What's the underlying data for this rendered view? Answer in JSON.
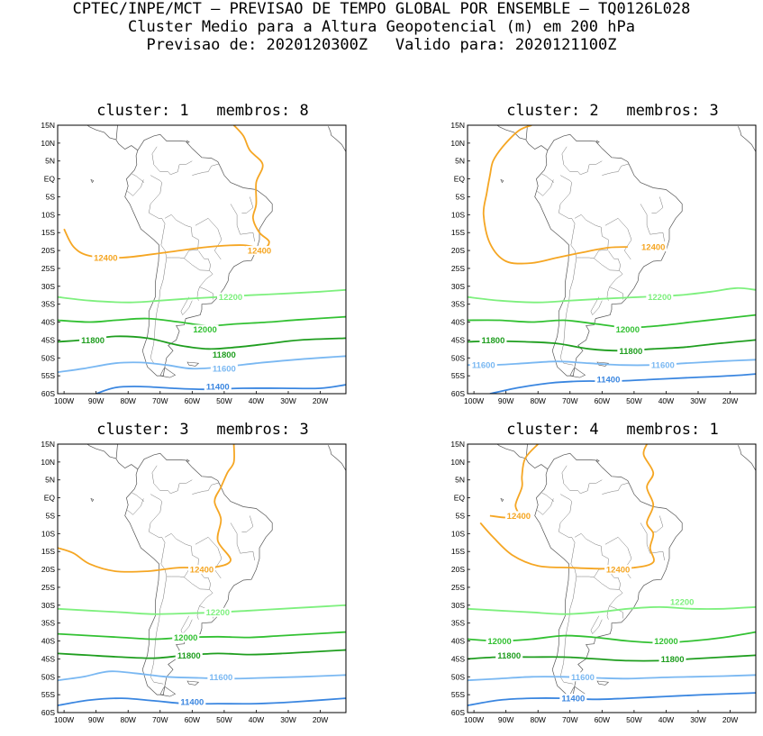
{
  "header": {
    "line1": "CPTEC/INPE/MCT — PREVISAO DE TEMPO GLOBAL POR ENSEMBLE — TQ0126L028",
    "line2": "Cluster Medio para a Altura Geopotencial (m) em 200 hPa",
    "line3": "Previsao de: 2020120300Z   Valido para: 2020121100Z"
  },
  "axes": {
    "lat_labels": [
      "15N",
      "10N",
      "5N",
      "EQ",
      "5S",
      "10S",
      "15S",
      "20S",
      "25S",
      "30S",
      "35S",
      "40S",
      "45S",
      "50S",
      "55S",
      "60S"
    ],
    "lon_labels": [
      "100W",
      "90W",
      "80W",
      "70W",
      "60W",
      "50W",
      "40W",
      "30W",
      "20W"
    ]
  },
  "colors": {
    "c12400": "#f5a623",
    "c12200": "#7ef07e",
    "c12000": "#33c133",
    "c11800": "#1f9e1f",
    "c11600": "#7ab8f2",
    "c11400": "#3a86e0"
  },
  "panels": [
    {
      "title": "cluster: 1   membros: 8",
      "contours": [
        {
          "level": "12400",
          "color": "c12400",
          "labels": [
            {
              "text": "12400",
              "lon": -87,
              "lat": -22
            },
            {
              "text": "12400",
              "lon": -39,
              "lat": -20
            }
          ]
        },
        {
          "level": "12200",
          "color": "c12200",
          "labels": [
            {
              "text": "12200",
              "lon": -48,
              "lat": -33
            }
          ]
        },
        {
          "level": "12000",
          "color": "c12000",
          "labels": [
            {
              "text": "12000",
              "lon": -56,
              "lat": -42
            }
          ]
        },
        {
          "level": "11800",
          "color": "c11800",
          "labels": [
            {
              "text": "11800",
              "lon": -91,
              "lat": -45
            },
            {
              "text": "11800",
              "lon": -50,
              "lat": -49
            }
          ]
        },
        {
          "level": "11600",
          "color": "c11600",
          "labels": [
            {
              "text": "11600",
              "lon": -50,
              "lat": -53
            }
          ]
        },
        {
          "level": "11400",
          "color": "c11400",
          "labels": [
            {
              "text": "11400",
              "lon": -52,
              "lat": -58
            }
          ]
        }
      ]
    },
    {
      "title": "cluster: 2   membros: 3",
      "contours": [
        {
          "level": "12400",
          "color": "c12400",
          "labels": [
            {
              "text": "12400",
              "lon": -44,
              "lat": -19
            }
          ]
        },
        {
          "level": "12200",
          "color": "c12200",
          "labels": [
            {
              "text": "12200",
              "lon": -42,
              "lat": -33
            }
          ]
        },
        {
          "level": "12000",
          "color": "c12000",
          "labels": [
            {
              "text": "12000",
              "lon": -52,
              "lat": -42
            }
          ]
        },
        {
          "level": "11800",
          "color": "c11800",
          "labels": [
            {
              "text": "11800",
              "lon": -94,
              "lat": -45
            },
            {
              "text": "11800",
              "lon": -51,
              "lat": -48
            }
          ]
        },
        {
          "level": "11600",
          "color": "c11600",
          "labels": [
            {
              "text": "11600",
              "lon": -97,
              "lat": -52
            },
            {
              "text": "11600",
              "lon": -41,
              "lat": -52
            }
          ]
        },
        {
          "level": "11400",
          "color": "c11400",
          "labels": [
            {
              "text": "11400",
              "lon": -58,
              "lat": -56
            }
          ]
        }
      ]
    },
    {
      "title": "cluster: 3   membros: 3",
      "contours": [
        {
          "level": "12400",
          "color": "c12400",
          "labels": [
            {
              "text": "12400",
              "lon": -57,
              "lat": -20
            }
          ]
        },
        {
          "level": "12200",
          "color": "c12200",
          "labels": [
            {
              "text": "12200",
              "lon": -52,
              "lat": -32
            }
          ]
        },
        {
          "level": "12000",
          "color": "c12000",
          "labels": [
            {
              "text": "12000",
              "lon": -62,
              "lat": -39
            }
          ]
        },
        {
          "level": "11800",
          "color": "c11800",
          "labels": [
            {
              "text": "11800",
              "lon": -61,
              "lat": -44
            }
          ]
        },
        {
          "level": "11600",
          "color": "c11600",
          "labels": [
            {
              "text": "11600",
              "lon": -51,
              "lat": -50
            }
          ]
        },
        {
          "level": "11400",
          "color": "c11400",
          "labels": [
            {
              "text": "11400",
              "lon": -60,
              "lat": -57
            }
          ]
        }
      ]
    },
    {
      "title": "cluster: 4   membros: 1",
      "contours": [
        {
          "level": "12400",
          "color": "c12400",
          "labels": [
            {
              "text": "12400",
              "lon": -86,
              "lat": -5
            },
            {
              "text": "12400",
              "lon": -55,
              "lat": -20
            }
          ]
        },
        {
          "level": "12200",
          "color": "c12200",
          "labels": [
            {
              "text": "12200",
              "lon": -35,
              "lat": -29
            }
          ]
        },
        {
          "level": "12000",
          "color": "c12000",
          "labels": [
            {
              "text": "12000",
              "lon": -92,
              "lat": -40
            },
            {
              "text": "12000",
              "lon": -40,
              "lat": -40
            }
          ]
        },
        {
          "level": "11800",
          "color": "c11800",
          "labels": [
            {
              "text": "11800",
              "lon": -89,
              "lat": -44
            },
            {
              "text": "11800",
              "lon": -38,
              "lat": -45
            }
          ]
        },
        {
          "level": "11600",
          "color": "c11600",
          "labels": [
            {
              "text": "11600",
              "lon": -66,
              "lat": -50
            }
          ]
        },
        {
          "level": "11400",
          "color": "c11400",
          "labels": [
            {
              "text": "11400",
              "lon": -69,
              "lat": -56
            }
          ]
        }
      ]
    }
  ]
}
